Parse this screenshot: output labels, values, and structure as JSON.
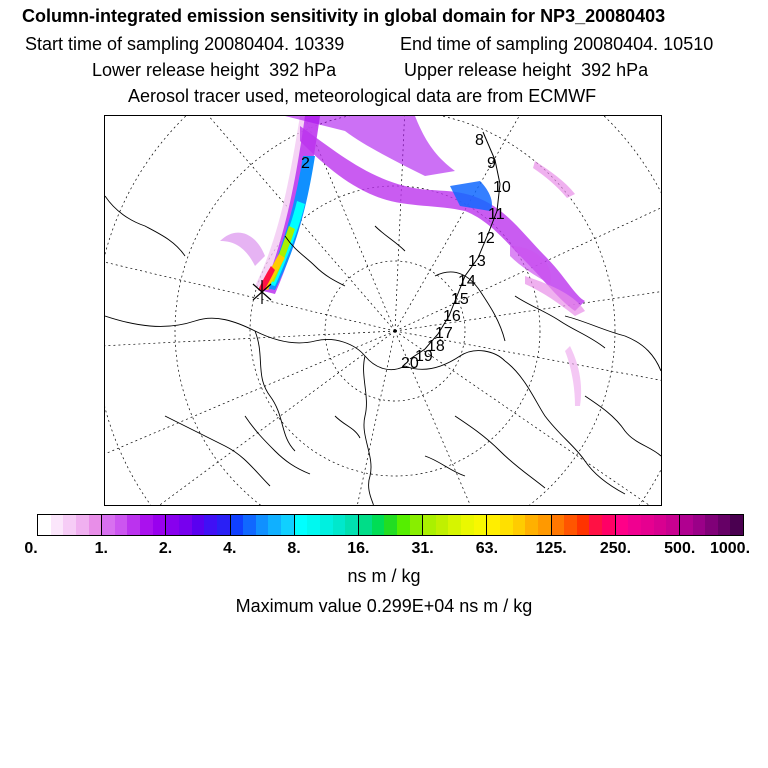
{
  "header": {
    "title": "Column-integrated emission sensitivity in global domain for NP3_20080403",
    "start_time": "Start time of sampling 20080404. 10339",
    "end_time": "End time of sampling 20080404. 10510",
    "lower_height": "Lower release height  392 hPa",
    "upper_height": "Upper release height  392 hPa",
    "tracer_info": "Aerosol tracer used, meteorological data are from ECMWF"
  },
  "map": {
    "track_labels": [
      "2",
      "8",
      "9",
      "10",
      "11",
      "12",
      "13",
      "14",
      "15",
      "16",
      "17",
      "18",
      "19",
      "20"
    ]
  },
  "colorbar": {
    "tick_labels": [
      "0.",
      "1.",
      "2.",
      "4.",
      "8.",
      "16.",
      "31.",
      "63.",
      "125.",
      "250.",
      "500.",
      "1000."
    ],
    "colors": [
      [
        "#ffffff",
        "#fbe6fb",
        "#f6ccf6",
        "#f0b0f0",
        "#e88ee8"
      ],
      [
        "#d870f0",
        "#cc55f0",
        "#bb33ee",
        "#aa11ee",
        "#9900ee"
      ],
      [
        "#8800ee",
        "#7700ee",
        "#5a00f0",
        "#4010f5",
        "#2a20f5"
      ],
      [
        "#1040ff",
        "#1068ff",
        "#1090ff",
        "#10b0ff",
        "#10d0ff"
      ],
      [
        "#00ffff",
        "#00f8f0",
        "#00f0e0",
        "#00e8cc",
        "#00e0b0"
      ],
      [
        "#00dd88",
        "#00dd55",
        "#22dd22",
        "#55ee00",
        "#88ee00"
      ],
      [
        "#aaf000",
        "#c0f000",
        "#d6f500",
        "#eaf800",
        "#f8f800"
      ],
      [
        "#ffee00",
        "#ffe000",
        "#ffcc00",
        "#ffb000",
        "#ff9900"
      ],
      [
        "#ff7700",
        "#ff5500",
        "#ff3300",
        "#ff1144",
        "#ff0066"
      ],
      [
        "#ff0088",
        "#f00090",
        "#e60090",
        "#d80090",
        "#c80090"
      ],
      [
        "#b00090",
        "#9a0088",
        "#800078",
        "#660066",
        "#4a0050"
      ]
    ]
  },
  "units": "ns m / kg",
  "max_value": "Maximum value  0.299E+04 ns m / kg"
}
